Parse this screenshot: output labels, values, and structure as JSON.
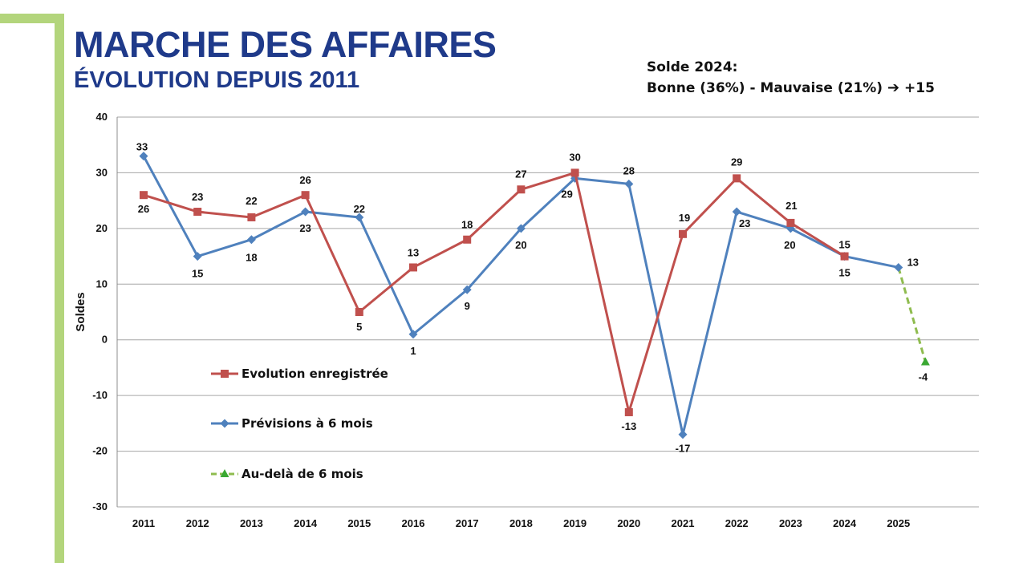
{
  "header": {
    "title": "MARCHE DES AFFAIRES",
    "subtitle": "ÉVOLUTION DEPUIS 2011"
  },
  "balance_note": {
    "line1": "Solde 2024:",
    "line2_text": "Bonne (36%) - Mauvaise (21%)",
    "arrow_icon": "➔",
    "line2_value": "+15"
  },
  "colors": {
    "accent_bar": "#b3d57c",
    "title": "#1f3a8a",
    "evolution": "#c0504d",
    "previsions": "#4f81bd",
    "beyond": "#8fbc4f",
    "beyond_marker": "#3aa832"
  },
  "chart_data": {
    "type": "line",
    "ylabel": "Soldes",
    "xlabel": "",
    "ylim": [
      -30,
      40
    ],
    "yticks": [
      -30,
      -20,
      -10,
      0,
      10,
      20,
      30,
      40
    ],
    "grid": true,
    "legend_position": "left",
    "categories": [
      "2011",
      "2012",
      "2013",
      "2014",
      "2015",
      "2016",
      "2017",
      "2018",
      "2019",
      "2020",
      "2021",
      "2022",
      "2023",
      "2024",
      "2025"
    ],
    "series": [
      {
        "name": "Evolution enregistrée",
        "marker": "square",
        "color": "#c0504d",
        "x": [
          "2011",
          "2012",
          "2013",
          "2014",
          "2015",
          "2016",
          "2017",
          "2018",
          "2019",
          "2020",
          "2021",
          "2022",
          "2023",
          "2024"
        ],
        "values": [
          26,
          23,
          22,
          26,
          5,
          13,
          18,
          27,
          30,
          -13,
          19,
          29,
          21,
          15
        ]
      },
      {
        "name": "Prévisions à 6 mois",
        "marker": "diamond",
        "color": "#4f81bd",
        "x": [
          "2011",
          "2012",
          "2013",
          "2014",
          "2015",
          "2016",
          "2017",
          "2018",
          "2019",
          "2020",
          "2021",
          "2022",
          "2023",
          "2024",
          "2025"
        ],
        "values": [
          33,
          15,
          18,
          23,
          22,
          1,
          9,
          20,
          29,
          28,
          -17,
          23,
          20,
          15,
          13
        ]
      },
      {
        "name": "Au-delà de 6 mois",
        "marker": "triangle",
        "dashed": true,
        "color": "#8fbc4f",
        "x": [
          "2025",
          "2025.5"
        ],
        "values": [
          13,
          -4
        ]
      }
    ]
  }
}
